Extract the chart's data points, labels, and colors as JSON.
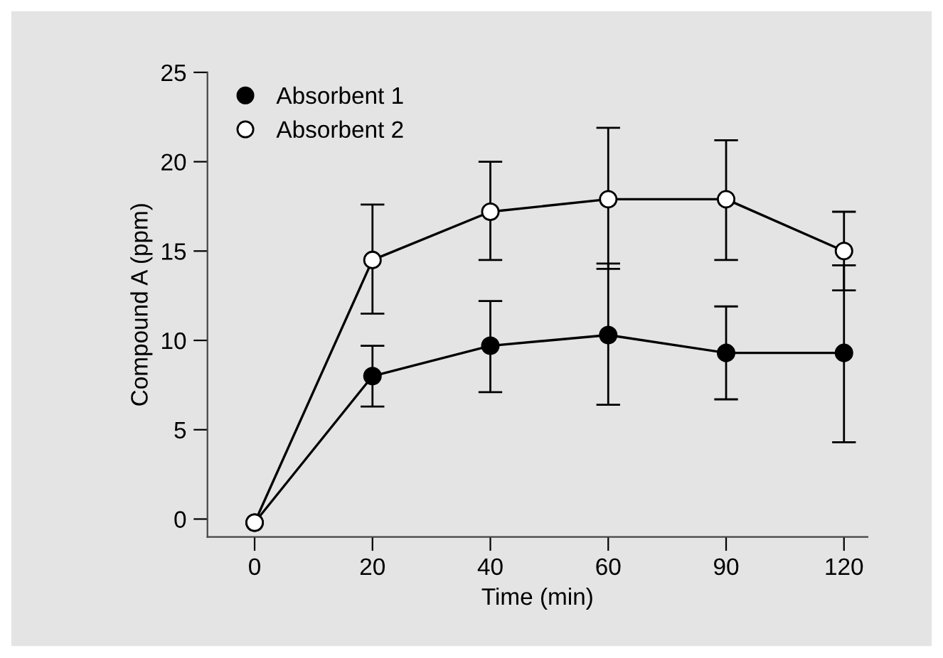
{
  "chart_data": {
    "type": "line",
    "xlabel": "Time (min)",
    "ylabel": "Compound A (ppm)",
    "categories": [
      "0",
      "20",
      "40",
      "60",
      "90",
      "120"
    ],
    "series": [
      {
        "name": "Absorbent 1",
        "color": "#000000",
        "values": [
          -0.2,
          8.0,
          9.7,
          10.3,
          9.3,
          9.3
        ],
        "errors": [
          null,
          [
            6.3,
            9.7
          ],
          [
            7.1,
            12.2
          ],
          [
            6.4,
            14.3
          ],
          [
            6.7,
            11.9
          ],
          [
            4.3,
            14.2
          ]
        ]
      },
      {
        "name": "Absorbent 2",
        "color": "#ffffff",
        "values": [
          -0.2,
          14.5,
          17.2,
          17.9,
          17.9,
          15.0
        ],
        "errors": [
          null,
          [
            11.5,
            17.6
          ],
          [
            14.5,
            20.0
          ],
          [
            14.0,
            21.9
          ],
          [
            14.5,
            21.2
          ],
          [
            12.8,
            17.2
          ]
        ]
      }
    ],
    "ylim": [
      -1,
      25
    ],
    "yticks": [
      0,
      5,
      10,
      15,
      20,
      25
    ],
    "grid": false,
    "legend": "top left",
    "marker": "circle",
    "line_style": "solid"
  }
}
